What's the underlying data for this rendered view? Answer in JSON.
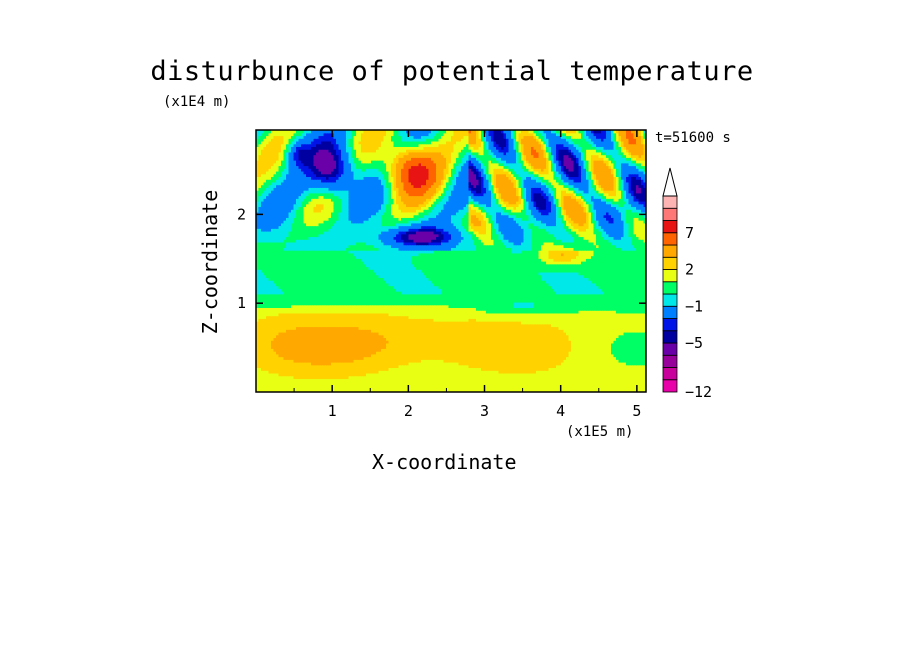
{
  "chart_data": {
    "type": "heatmap",
    "title": "disturbunce of potential temperature",
    "xlabel": "X-coordinate",
    "ylabel": "Z-coordinate",
    "x_unit": "(x1E5 m)",
    "y_unit": "(x1E4 m)",
    "time_label": "t=51600 s",
    "xlim": [
      0,
      5.12
    ],
    "ylim": [
      0,
      2.95
    ],
    "x_ticks": [
      {
        "value": 1,
        "label": "1"
      },
      {
        "value": 2,
        "label": "2"
      },
      {
        "value": 3,
        "label": "3"
      },
      {
        "value": 4,
        "label": "4"
      },
      {
        "value": 5,
        "label": "5"
      }
    ],
    "y_ticks": [
      {
        "value": 1,
        "label": "1"
      },
      {
        "value": 2,
        "label": "2"
      }
    ],
    "colorbar": {
      "levels": [
        -12,
        -11,
        -9,
        -7,
        -5,
        -4,
        -3,
        -1,
        0,
        1,
        2,
        3,
        5,
        7,
        9,
        11
      ],
      "labels": [
        {
          "value": -12,
          "label": "−12"
        },
        {
          "value": -5,
          "label": "−5"
        },
        {
          "value": -1,
          "label": "−1"
        },
        {
          "value": 2,
          "label": "2"
        },
        {
          "value": 7,
          "label": "7"
        }
      ],
      "colors": [
        "#e800a8",
        "#c8009c",
        "#98009c",
        "#6a00a8",
        "#0000a0",
        "#0014e8",
        "#0080ff",
        "#00e8e8",
        "#00ff64",
        "#e8ff14",
        "#ffd200",
        "#ffa800",
        "#ff6400",
        "#e81414",
        "#ff7878",
        "#ffb4b4"
      ],
      "extend": "max"
    },
    "features": [
      {
        "x": 1.0,
        "z": 2.5,
        "value": -6,
        "rx": 0.28,
        "rz": 0.28
      },
      {
        "x": 2.05,
        "z": 2.5,
        "value": 7,
        "rx": 0.35,
        "rz": 0.3
      },
      {
        "x": 2.15,
        "z": 1.75,
        "value": -5,
        "rx": 0.55,
        "rz": 0.12
      },
      {
        "x": 0.55,
        "z": 2.7,
        "value": -3,
        "rx": 0.15,
        "rz": 0.15
      },
      {
        "x": 4.0,
        "z": 1.55,
        "value": 3,
        "rx": 0.3,
        "rz": 0.12
      },
      {
        "x": 3.5,
        "z": 0.95,
        "value": -1,
        "rx": 0.4,
        "rz": 0.12
      },
      {
        "x": 1.5,
        "z": 0.55,
        "value": 2,
        "rx": 1.8,
        "rz": 0.3
      }
    ]
  }
}
